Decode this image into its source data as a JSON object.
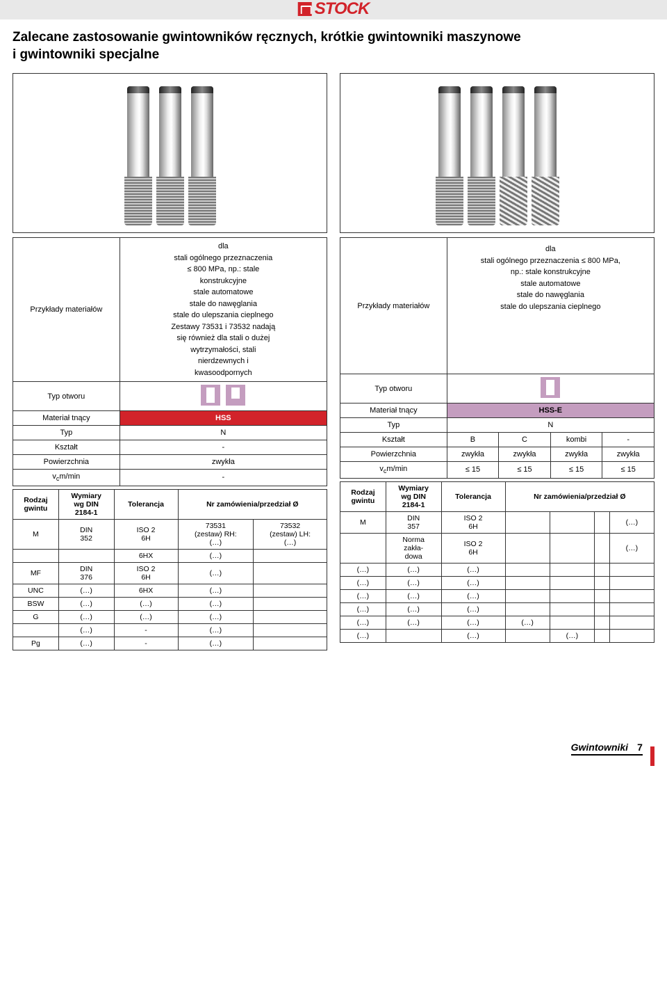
{
  "brand": "STOCK",
  "title_line1": "Zalecane zastosowanie gwintowników ręcznych, krótkie gwintowniki maszynowe",
  "title_line2": "i gwintowniki specjalne",
  "left": {
    "materials_label": "Przykłady materiałów",
    "materials_text": "dla\nstali ogólnego przeznaczenia\n≤ 800 MPa, np.: stale\nkonstrukcyjne\nstale automatowe\nstale do nawęglania\nstale do ulepszania cieplnego\nZestawy 73531 i 73532 nadają\nsię również dla stali o dużej\nwytrzymałości, stali\nnierdzewnych i\nkwasoodpornych",
    "hole_label": "Typ otworu",
    "rows": {
      "mt_label": "Materiał tnący",
      "mt_val": "HSS",
      "typ_label": "Typ",
      "typ_val": "N",
      "ksz_label": "Kształt",
      "ksz_val": "-",
      "pow_label": "Powierzchnia",
      "pow_val": "zwykła",
      "vc_label": "vcm/min",
      "vc_val": "-"
    },
    "spec_head": {
      "rodzaj": "Rodzaj\ngwintu",
      "wymiary": "Wymiary\nwg DIN\n2184-1",
      "tol": "Tolerancja",
      "nr": "Nr zamówienia/przedział Ø"
    },
    "spec": [
      {
        "c1": "M",
        "c2": "DIN\n352",
        "c3": "ISO 2\n6H",
        "c4": "73531\n(zestaw) RH:\n(…)",
        "c5": "73532\n(zestaw) LH:\n(…)"
      },
      {
        "c1": "",
        "c2": "",
        "c3": "6HX",
        "c4": "(…)",
        "c5": ""
      },
      {
        "c1": "MF",
        "c2": "DIN\n376",
        "c3": "ISO 2\n6H",
        "c4": "(…)",
        "c5": ""
      },
      {
        "c1": "UNC",
        "c2": "(…)",
        "c3": "6HX",
        "c4": "(…)",
        "c5": ""
      },
      {
        "c1": "BSW",
        "c2": "(…)",
        "c3": "(…)",
        "c4": "(…)",
        "c5": ""
      },
      {
        "c1": "G",
        "c2": "(…)",
        "c3": "(…)",
        "c4": "(…)",
        "c5": ""
      },
      {
        "c1": "",
        "c2": "(…)",
        "c3": "-",
        "c4": "(…)",
        "c5": ""
      },
      {
        "c1": "Pg",
        "c2": "(…)",
        "c3": "-",
        "c4": "(…)",
        "c5": ""
      }
    ]
  },
  "right": {
    "materials_label": "Przykłady materiałów",
    "materials_text": "dla\nstali ogólnego przeznaczenia ≤ 800 MPa,\nnp.: stale konstrukcyjne\nstale automatowe\nstale do nawęglania\nstale do ulepszania cieplnego",
    "hole_label": "Typ otworu",
    "rows": {
      "mt_label": "Materiał tnący",
      "mt_val": "HSS-E",
      "typ_label": "Typ",
      "typ_val": "N",
      "ksz_label": "Kształt",
      "ksz_v1": "B",
      "ksz_v2": "C",
      "ksz_v3": "kombi",
      "ksz_v4": "-",
      "pow_label": "Powierzchnia",
      "pow_v": "zwykła",
      "vc_label": "vcm/min",
      "vc_v": "≤ 15"
    },
    "spec_head": {
      "rodzaj": "Rodzaj\ngwintu",
      "wymiary": "Wymiary\nwg DIN\n2184-1",
      "tol": "Tolerancja",
      "nr": "Nr zamówienia/przedział Ø"
    },
    "spec": [
      {
        "c1": "M",
        "c2": "DIN\n357",
        "c3": "ISO 2\n6H",
        "c4": "",
        "c5": "",
        "c6": "",
        "c7": "(…)"
      },
      {
        "c1": "",
        "c2": "Norma\nzakła-\ndowa",
        "c3": "ISO 2\n6H",
        "c4": "",
        "c5": "",
        "c6": "",
        "c7": "(…)"
      },
      {
        "c1": "(…)",
        "c2": "(…)",
        "c3": "(…)",
        "c4": "",
        "c5": "",
        "c6": "",
        "c7": ""
      },
      {
        "c1": "(…)",
        "c2": "(…)",
        "c3": "(…)",
        "c4": "",
        "c5": "",
        "c6": "",
        "c7": ""
      },
      {
        "c1": "(…)",
        "c2": "(…)",
        "c3": "(…)",
        "c4": "",
        "c5": "",
        "c6": "",
        "c7": ""
      },
      {
        "c1": "(…)",
        "c2": "(…)",
        "c3": "(…)",
        "c4": "",
        "c5": "",
        "c6": "",
        "c7": ""
      },
      {
        "c1": "(…)",
        "c2": "(…)",
        "c3": "(…)",
        "c4": "(…)",
        "c5": "",
        "c6": "",
        "c7": ""
      },
      {
        "c1": "(…)",
        "c2": "",
        "c3": "(…)",
        "c4": "",
        "c5": "(…)",
        "c6": "",
        "c7": ""
      }
    ]
  },
  "footer": {
    "text": "Gwintowniki",
    "page": "7"
  }
}
